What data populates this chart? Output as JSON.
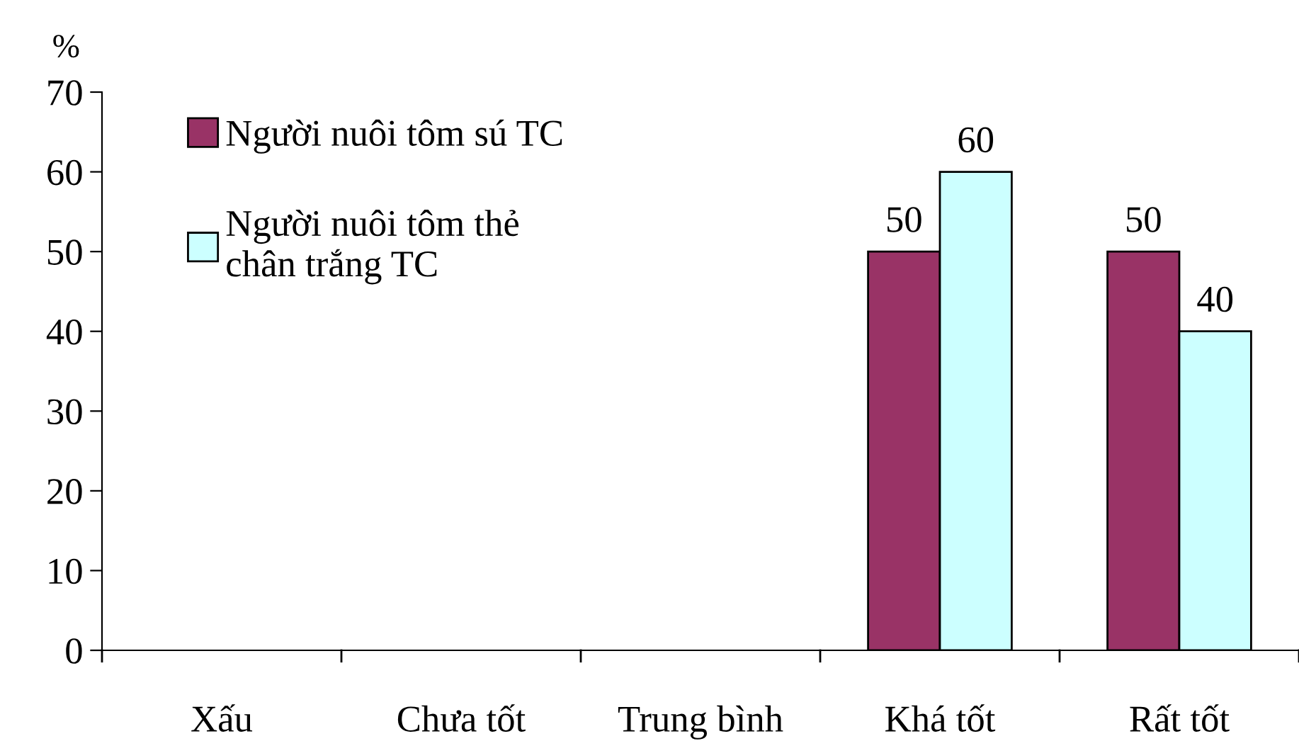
{
  "chart_data": {
    "type": "bar",
    "ylabel": "%",
    "categories": [
      "Xấu",
      "Chưa tốt",
      "Trung bình",
      "Khá tốt",
      "Rất tốt"
    ],
    "series": [
      {
        "name": "Người nuôi tôm sú TC",
        "color": "#993366",
        "values": [
          null,
          null,
          null,
          50,
          50
        ],
        "value_labels": [
          null,
          null,
          null,
          "50",
          "50"
        ]
      },
      {
        "name": "Người nuôi tôm thẻ\nchân trắng TC",
        "color": "#ccffff",
        "values": [
          null,
          null,
          null,
          60,
          40
        ],
        "value_labels": [
          null,
          null,
          null,
          "60",
          "40"
        ]
      }
    ],
    "ylim": [
      0,
      70
    ],
    "yticks": [
      0,
      10,
      20,
      30,
      40,
      50,
      60,
      70
    ],
    "grid": false,
    "legend": "top left"
  }
}
